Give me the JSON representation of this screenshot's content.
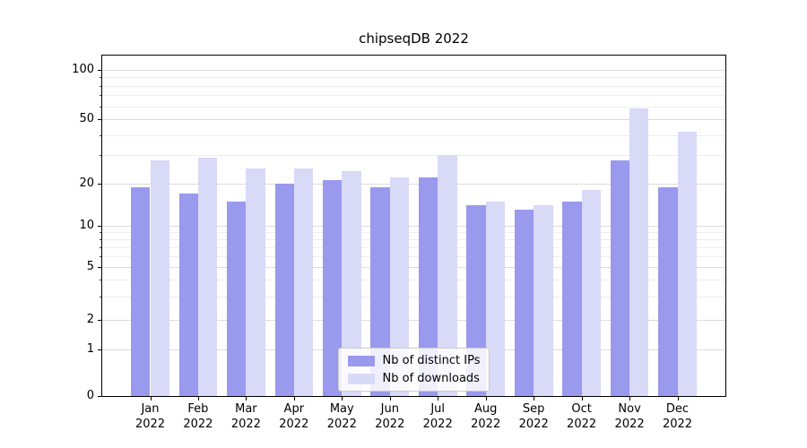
{
  "title": "chipseqDB 2022",
  "chart_data": {
    "type": "bar",
    "title": "chipseqDB 2022",
    "categories": [
      "Jan 2022",
      "Feb 2022",
      "Mar 2022",
      "Apr 2022",
      "May 2022",
      "Jun 2022",
      "Jul 2022",
      "Aug 2022",
      "Sep 2022",
      "Oct 2022",
      "Nov 2022",
      "Dec 2022"
    ],
    "series": [
      {
        "name": "Nb of distinct IPs",
        "color": "#9999ee",
        "values": [
          19,
          17,
          15,
          20,
          21,
          19,
          22,
          14,
          13,
          15,
          28,
          19
        ]
      },
      {
        "name": "Nb of downloads",
        "color": "#d9d9f8",
        "values": [
          28,
          29,
          25,
          25,
          24,
          22,
          30,
          15,
          14,
          18,
          58,
          42
        ]
      }
    ],
    "yscale": "symlog",
    "ylim": [
      0,
      140
    ],
    "yticks": [
      0,
      1,
      2,
      5,
      10,
      20,
      50,
      100
    ],
    "minor_yticks": [
      3,
      4,
      6,
      7,
      8,
      9,
      30,
      40,
      60,
      70,
      80,
      90
    ],
    "grid": true,
    "legend_position": "lower center"
  }
}
